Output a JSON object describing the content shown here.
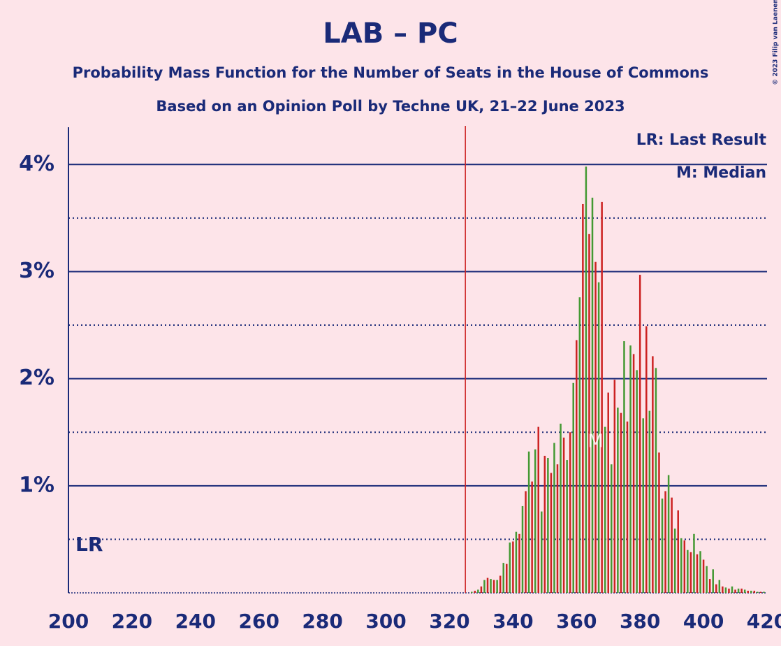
{
  "chart_data": {
    "type": "bar",
    "title": "LAB – PC",
    "subtitle": "Probability Mass Function for the Number of Seats in the House of Commons",
    "subtitle2": "Based on an Opinion Poll by Techne UK, 21–22 June 2023",
    "copyright": "© 2023 Filip van Laenen",
    "legend": [
      "LR: Last Result",
      "M: Median"
    ],
    "last_result": 325,
    "last_result_label": "LR",
    "last_result_color": "#cc2222",
    "median": 366,
    "median_label": "M",
    "colors": [
      "#449933",
      "#cc2222"
    ],
    "x": [
      327,
      328,
      329,
      330,
      331,
      332,
      333,
      334,
      335,
      336,
      337,
      338,
      339,
      340,
      341,
      342,
      343,
      344,
      345,
      346,
      347,
      348,
      349,
      350,
      351,
      352,
      353,
      354,
      355,
      356,
      357,
      358,
      359,
      360,
      361,
      362,
      363,
      364,
      365,
      366,
      367,
      368,
      369,
      370,
      371,
      372,
      373,
      374,
      375,
      376,
      377,
      378,
      379,
      380,
      381,
      382,
      383,
      384,
      385,
      386,
      387,
      388,
      389,
      390,
      391,
      392,
      393,
      394,
      395,
      396,
      397,
      398,
      399,
      400,
      401,
      402,
      403,
      404,
      405,
      406,
      407,
      408,
      409,
      410,
      411,
      412,
      413,
      414,
      415,
      416,
      417,
      418,
      419
    ],
    "values": [
      0.01,
      0.02,
      0.03,
      0.06,
      0.12,
      0.14,
      0.13,
      0.12,
      0.12,
      0.16,
      0.28,
      0.27,
      0.47,
      0.48,
      0.57,
      0.55,
      0.81,
      0.95,
      1.32,
      1.04,
      1.34,
      1.55,
      0.76,
      1.28,
      1.26,
      1.12,
      1.4,
      1.2,
      1.58,
      1.45,
      1.24,
      1.5,
      1.96,
      2.36,
      2.76,
      3.63,
      3.98,
      3.35,
      3.69,
      3.09,
      2.9,
      3.65,
      1.55,
      1.87,
      1.2,
      1.99,
      1.73,
      1.68,
      2.35,
      1.6,
      2.31,
      2.23,
      2.08,
      2.97,
      1.63,
      2.49,
      1.7,
      2.21,
      2.1,
      1.31,
      0.88,
      0.95,
      1.1,
      0.89,
      0.6,
      0.77,
      0.51,
      0.49,
      0.4,
      0.38,
      0.55,
      0.36,
      0.39,
      0.31,
      0.25,
      0.13,
      0.22,
      0.08,
      0.12,
      0.06,
      0.05,
      0.04,
      0.06,
      0.03,
      0.04,
      0.04,
      0.03,
      0.02,
      0.02,
      0.02,
      0.01,
      0.01,
      0.01
    ],
    "xlim": [
      200,
      420
    ],
    "xticks": [
      200,
      220,
      240,
      260,
      280,
      300,
      320,
      340,
      360,
      380,
      400,
      420
    ],
    "ylim": [
      0,
      4.4
    ],
    "yticks": [
      {
        "value": 1,
        "label": "1%"
      },
      {
        "value": 2,
        "label": "2%"
      },
      {
        "value": 3,
        "label": "3%"
      },
      {
        "value": 4,
        "label": "4%"
      }
    ],
    "yticks_minor": [
      0.5,
      1.5,
      2.5,
      3.5
    ],
    "grid": true
  }
}
